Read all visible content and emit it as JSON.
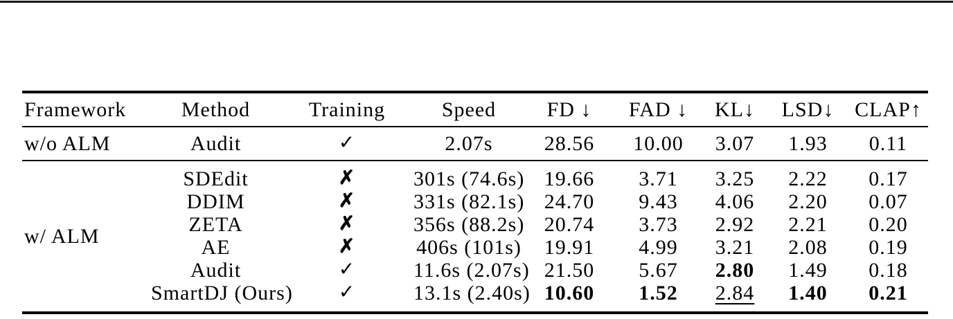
{
  "page": {
    "top_divider": "horizontal-rule"
  },
  "table": {
    "columns": [
      {
        "key": "framework",
        "label": "Framework"
      },
      {
        "key": "method",
        "label": "Method"
      },
      {
        "key": "training",
        "label": "Training"
      },
      {
        "key": "speed",
        "label": "Speed"
      },
      {
        "key": "fd",
        "label": "FD ↓"
      },
      {
        "key": "fad",
        "label": "FAD ↓"
      },
      {
        "key": "kl",
        "label": "KL↓"
      },
      {
        "key": "lsd",
        "label": "LSD↓"
      },
      {
        "key": "clap",
        "label": "CLAP↑"
      }
    ],
    "glyphs": {
      "check": "✓",
      "cross": "✗"
    },
    "sections": [
      {
        "framework": "w/o ALM",
        "rows": [
          {
            "method": "Audit",
            "training": "check",
            "speed": "2.07s",
            "fd": "28.56",
            "fad": "10.00",
            "kl": "3.07",
            "lsd": "1.93",
            "clap": "0.11",
            "bold": [],
            "underline": []
          }
        ]
      },
      {
        "framework": "w/ ALM",
        "rows": [
          {
            "method": "SDEdit",
            "training": "cross",
            "speed": "301s (74.6s)",
            "fd": "19.66",
            "fad": "3.71",
            "kl": "3.25",
            "lsd": "2.22",
            "clap": "0.17",
            "bold": [],
            "underline": []
          },
          {
            "method": "DDIM",
            "training": "cross",
            "speed": "331s (82.1s)",
            "fd": "24.70",
            "fad": "9.43",
            "kl": "4.06",
            "lsd": "2.20",
            "clap": "0.07",
            "bold": [],
            "underline": []
          },
          {
            "method": "ZETA",
            "training": "cross",
            "speed": "356s (88.2s)",
            "fd": "20.74",
            "fad": "3.73",
            "kl": "2.92",
            "lsd": "2.21",
            "clap": "0.20",
            "bold": [],
            "underline": []
          },
          {
            "method": "AE",
            "training": "cross",
            "speed": "406s (101s)",
            "fd": "19.91",
            "fad": "4.99",
            "kl": "3.21",
            "lsd": "2.08",
            "clap": "0.19",
            "bold": [],
            "underline": []
          },
          {
            "method": "Audit",
            "training": "check",
            "speed": "11.6s (2.07s)",
            "fd": "21.50",
            "fad": "5.67",
            "kl": "2.80",
            "lsd": "1.49",
            "clap": "0.18",
            "bold": [
              "kl"
            ],
            "underline": []
          },
          {
            "method": "SmartDJ (Ours)",
            "training": "check",
            "speed": "13.1s (2.40s)",
            "fd": "10.60",
            "fad": "1.52",
            "kl": "2.84",
            "lsd": "1.40",
            "clap": "0.21",
            "bold": [
              "fd",
              "fad",
              "lsd",
              "clap"
            ],
            "underline": [
              "kl"
            ]
          }
        ]
      }
    ]
  }
}
